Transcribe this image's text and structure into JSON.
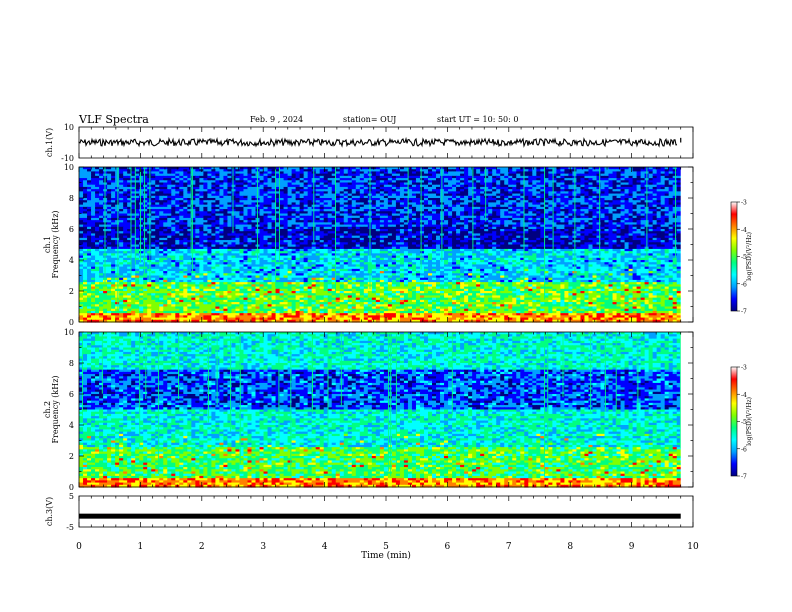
{
  "header": {
    "title": "VLF Spectra",
    "date": "Feb. 9 , 2024",
    "station": "station= OUJ",
    "start": "start  UT =   10: 50: 0"
  },
  "chart_data": [
    {
      "type": "line",
      "panel": "ch1-waveform",
      "ylabel": "ch.1(V)",
      "ylim": [
        -10,
        10
      ],
      "yticks": [
        "10",
        "-10"
      ],
      "xlim": [
        0,
        10
      ],
      "series": [
        {
          "values": [
            {
              "x": 0.0,
              "y": 0
            },
            {
              "x": 9.75,
              "y": 0
            },
            {
              "x": 9.8,
              "y": 3
            },
            {
              "x": 9.82,
              "y": 0
            }
          ]
        }
      ]
    },
    {
      "type": "heatmap",
      "panel": "ch1-spectrogram",
      "ylabel": "Frequency  (kHz)",
      "channel_label": "ch.1",
      "ylim": [
        0,
        10
      ],
      "yticks": [
        "0",
        "2",
        "4",
        "6",
        "8",
        "10"
      ],
      "xlim": [
        0,
        10
      ],
      "data_end_min": 9.8,
      "colorbar": {
        "label": "log(PSD)(V²/Hz)",
        "range": [
          -7,
          -3
        ],
        "ticks": [
          "-3",
          "-4",
          "-5",
          "-6",
          "-7"
        ]
      }
    },
    {
      "type": "heatmap",
      "panel": "ch2-spectrogram",
      "ylabel": "Frequency  (kHz)",
      "channel_label": "ch.2",
      "ylim": [
        0,
        10
      ],
      "yticks": [
        "0",
        "2",
        "4",
        "6",
        "8",
        "10"
      ],
      "xlim": [
        0,
        10
      ],
      "data_end_min": 9.8,
      "colorbar": {
        "label": "log(PSD)(V²/Hz)",
        "range": [
          -7,
          -3
        ],
        "ticks": [
          "-3",
          "-4",
          "-5",
          "-6",
          "-7"
        ]
      }
    },
    {
      "type": "line",
      "panel": "ch3-waveform",
      "ylabel": "ch.3(V)",
      "ylim": [
        -5,
        5
      ],
      "yticks": [
        "5",
        "-5"
      ],
      "xlim": [
        0,
        10
      ],
      "series": [
        {
          "values": [
            {
              "x": 0.0,
              "y": -1.5
            },
            {
              "x": 9.8,
              "y": -1.5
            }
          ]
        }
      ]
    }
  ],
  "xaxis": {
    "label": "Time  (min)",
    "ticks": [
      "0",
      "1",
      "2",
      "3",
      "4",
      "5",
      "6",
      "7",
      "8",
      "9",
      "10"
    ]
  },
  "colors": {
    "colormap": [
      "#000080",
      "#0000ff",
      "#00a0ff",
      "#00ffff",
      "#00ff80",
      "#80ff00",
      "#ffff00",
      "#ff8000",
      "#ff0000",
      "#ffffff"
    ]
  }
}
